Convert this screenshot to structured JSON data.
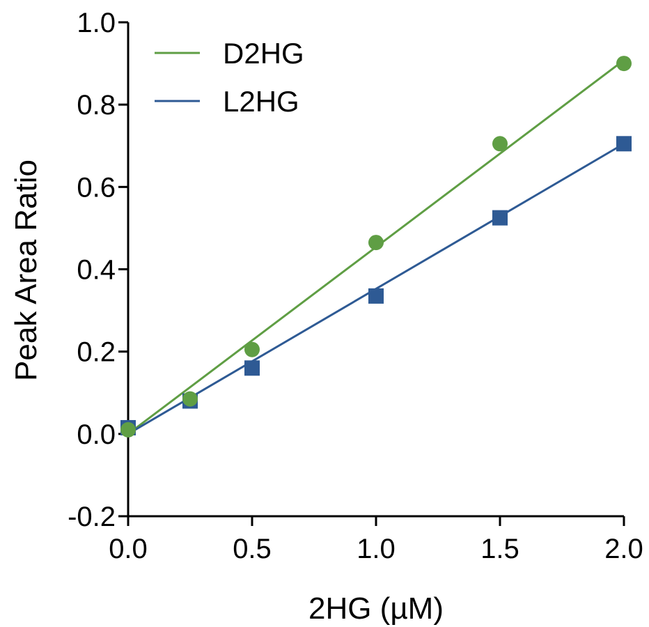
{
  "chart_data": {
    "type": "scatter",
    "title": "",
    "xlabel": "2HG (µM)",
    "ylabel": "Peak Area Ratio",
    "xlim": [
      0.0,
      2.0
    ],
    "ylim": [
      -0.2,
      1.0
    ],
    "x_ticks": [
      "0.0",
      "0.5",
      "1.0",
      "1.5",
      "2.0"
    ],
    "y_ticks": [
      "-0.2",
      "0.0",
      "0.2",
      "0.4",
      "0.6",
      "0.8",
      "1.0"
    ],
    "grid": false,
    "legend_position": "top-left",
    "series": [
      {
        "name": "D2HG",
        "color": "#5f9e44",
        "marker": "circle",
        "x": [
          0,
          0.25,
          0.5,
          1.0,
          1.5,
          2.0
        ],
        "y": [
          0.01,
          0.085,
          0.205,
          0.465,
          0.705,
          0.9
        ],
        "fit": {
          "x": [
            0,
            2.0
          ],
          "y": [
            0.0,
            0.908
          ]
        }
      },
      {
        "name": "L2HG",
        "color": "#2e5a94",
        "marker": "square",
        "x": [
          0,
          0.25,
          0.5,
          1.0,
          1.5,
          2.0
        ],
        "y": [
          0.015,
          0.08,
          0.16,
          0.335,
          0.525,
          0.705
        ],
        "fit": {
          "x": [
            0,
            2.0
          ],
          "y": [
            0.0,
            0.705
          ]
        }
      }
    ]
  }
}
